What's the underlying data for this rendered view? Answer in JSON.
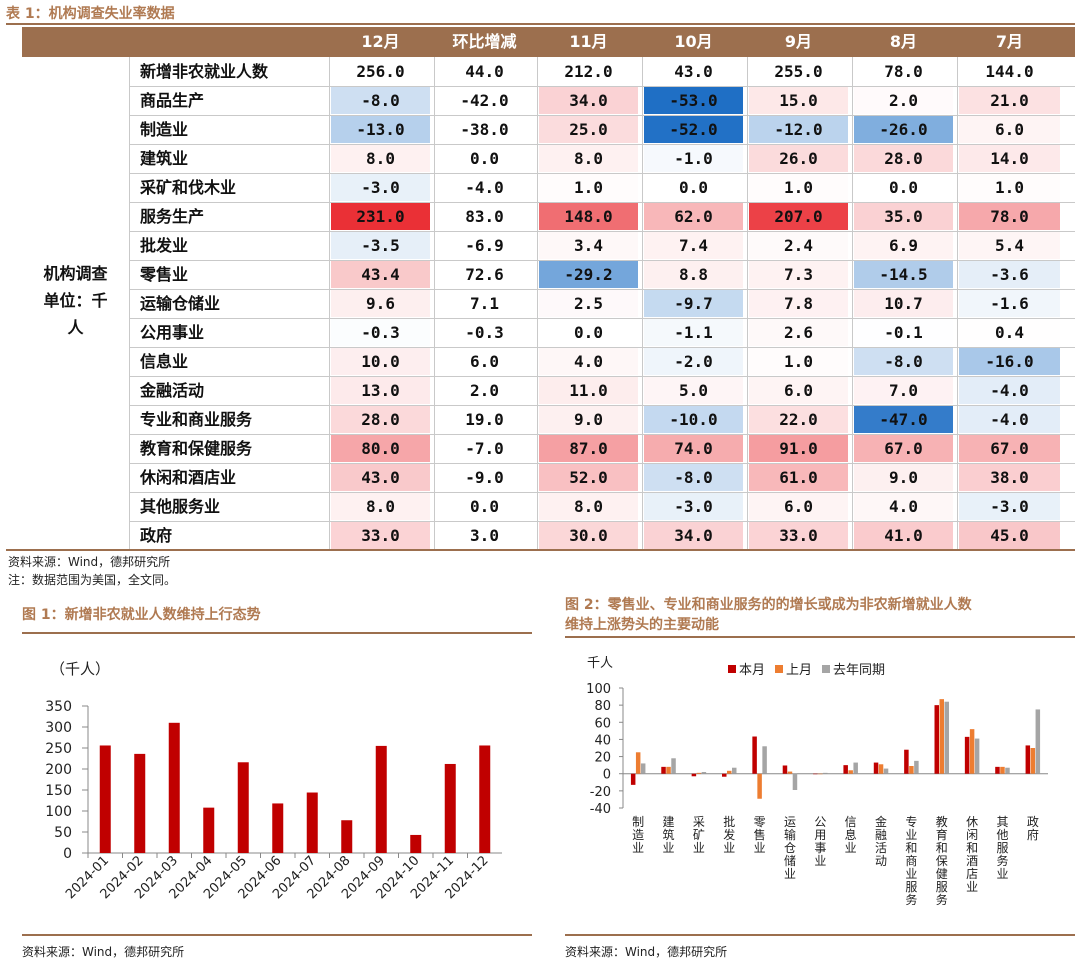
{
  "table1": {
    "caption": "表 1：机构调查失业率数据",
    "side_label_lines": [
      "机构调查",
      "单位：千",
      "人"
    ],
    "columns": [
      "12月",
      "环比增减",
      "11月",
      "10月",
      "9月",
      "8月",
      "7月"
    ],
    "rows": [
      {
        "label": "新增非农就业人数",
        "values": [
          "256.0",
          "44.0",
          "212.0",
          "43.0",
          "255.0",
          "78.0",
          "144.0"
        ]
      },
      {
        "label": "商品生产",
        "values": [
          "-8.0",
          "-42.0",
          "34.0",
          "-53.0",
          "15.0",
          "2.0",
          "21.0"
        ]
      },
      {
        "label": "制造业",
        "values": [
          "-13.0",
          "-38.0",
          "25.0",
          "-52.0",
          "-12.0",
          "-26.0",
          "6.0"
        ]
      },
      {
        "label": "建筑业",
        "values": [
          "8.0",
          "0.0",
          "8.0",
          "-1.0",
          "26.0",
          "28.0",
          "14.0"
        ]
      },
      {
        "label": "采矿和伐木业",
        "values": [
          "-3.0",
          "-4.0",
          "1.0",
          "0.0",
          "1.0",
          "0.0",
          "1.0"
        ]
      },
      {
        "label": "服务生产",
        "values": [
          "231.0",
          "83.0",
          "148.0",
          "62.0",
          "207.0",
          "35.0",
          "78.0"
        ]
      },
      {
        "label": "批发业",
        "values": [
          "-3.5",
          "-6.9",
          "3.4",
          "7.4",
          "2.4",
          "6.9",
          "5.4"
        ]
      },
      {
        "label": "零售业",
        "values": [
          "43.4",
          "72.6",
          "-29.2",
          "8.8",
          "7.3",
          "-14.5",
          "-3.6"
        ]
      },
      {
        "label": "运输仓储业",
        "values": [
          "9.6",
          "7.1",
          "2.5",
          "-9.7",
          "7.8",
          "10.7",
          "-1.6"
        ]
      },
      {
        "label": "公用事业",
        "values": [
          "-0.3",
          "-0.3",
          "0.0",
          "-1.1",
          "2.6",
          "-0.1",
          "0.4"
        ]
      },
      {
        "label": "信息业",
        "values": [
          "10.0",
          "6.0",
          "4.0",
          "-2.0",
          "1.0",
          "-8.0",
          "-16.0"
        ]
      },
      {
        "label": "金融活动",
        "values": [
          "13.0",
          "2.0",
          "11.0",
          "5.0",
          "6.0",
          "7.0",
          "-4.0"
        ]
      },
      {
        "label": "专业和商业服务",
        "values": [
          "28.0",
          "19.0",
          "9.0",
          "-10.0",
          "22.0",
          "-47.0",
          "-4.0"
        ]
      },
      {
        "label": "教育和保健服务",
        "values": [
          "80.0",
          "-7.0",
          "87.0",
          "74.0",
          "91.0",
          "67.0",
          "67.0"
        ]
      },
      {
        "label": "休闲和酒店业",
        "values": [
          "43.0",
          "-9.0",
          "52.0",
          "-8.0",
          "61.0",
          "9.0",
          "38.0"
        ]
      },
      {
        "label": "其他服务业",
        "values": [
          "8.0",
          "0.0",
          "8.0",
          "-3.0",
          "6.0",
          "4.0",
          "-3.0"
        ]
      },
      {
        "label": "政府",
        "values": [
          "33.0",
          "3.0",
          "30.0",
          "34.0",
          "33.0",
          "41.0",
          "45.0"
        ]
      }
    ],
    "colors": {
      "header_bg": "#9c6f4e",
      "positive_max": "#e81e25",
      "negative_max": "#1f6fc5"
    },
    "source": "资料来源：Wind，德邦研究所",
    "note": "注：数据范围为美国，全文同。"
  },
  "fig1": {
    "caption": "图 1：新增非农就业人数维持上行态势",
    "unit": "（千人）",
    "source": "资料来源：Wind，德邦研究所"
  },
  "fig2": {
    "caption_line1": "图 2：零售业、专业和商业服务的的增长或成为非农新增就业人数",
    "caption_line2": "维持上涨势头的主要动能",
    "unit": "千人",
    "source": "资料来源：Wind，德邦研究所"
  },
  "chart_data": [
    {
      "type": "bar",
      "categories": [
        "2024-01",
        "2024-02",
        "2024-03",
        "2024-04",
        "2024-05",
        "2024-06",
        "2024-07",
        "2024-08",
        "2024-09",
        "2024-10",
        "2024-11",
        "2024-12"
      ],
      "values": [
        256,
        236,
        310,
        108,
        216,
        118,
        144,
        78,
        255,
        43,
        212,
        256
      ],
      "ylabel": "（千人）",
      "ylim": [
        0,
        350
      ],
      "yticks": [
        0,
        50,
        100,
        150,
        200,
        250,
        300,
        350
      ],
      "color": "#c00000"
    },
    {
      "type": "bar",
      "categories": [
        "制造业",
        "建筑业",
        "采矿业",
        "批发业",
        "零售业",
        "运输仓储业",
        "公用事业",
        "信息业",
        "金融活动",
        "专业和商业服务",
        "教育和保健服务",
        "休闲和酒店业",
        "其他服务业",
        "政府"
      ],
      "series": [
        {
          "name": "本月",
          "color": "#c00000",
          "values": [
            -13,
            8,
            -3,
            -3.5,
            43.4,
            9.6,
            -0.3,
            10,
            13,
            28,
            80,
            43,
            8,
            33
          ]
        },
        {
          "name": "上月",
          "color": "#ed7d31",
          "values": [
            25,
            8,
            1,
            3.4,
            -29.2,
            2.5,
            0,
            4,
            11,
            9,
            87,
            52,
            8,
            30
          ]
        },
        {
          "name": "去年同期",
          "color": "#a5a5a5",
          "values": [
            12,
            18,
            2,
            7,
            32,
            -19,
            1,
            13,
            6,
            15,
            84,
            41,
            7,
            75
          ]
        }
      ],
      "ylabel": "千人",
      "ylim": [
        -40,
        100
      ],
      "yticks": [
        -40,
        -20,
        0,
        20,
        40,
        60,
        80,
        100
      ],
      "legend": "top-center"
    }
  ]
}
